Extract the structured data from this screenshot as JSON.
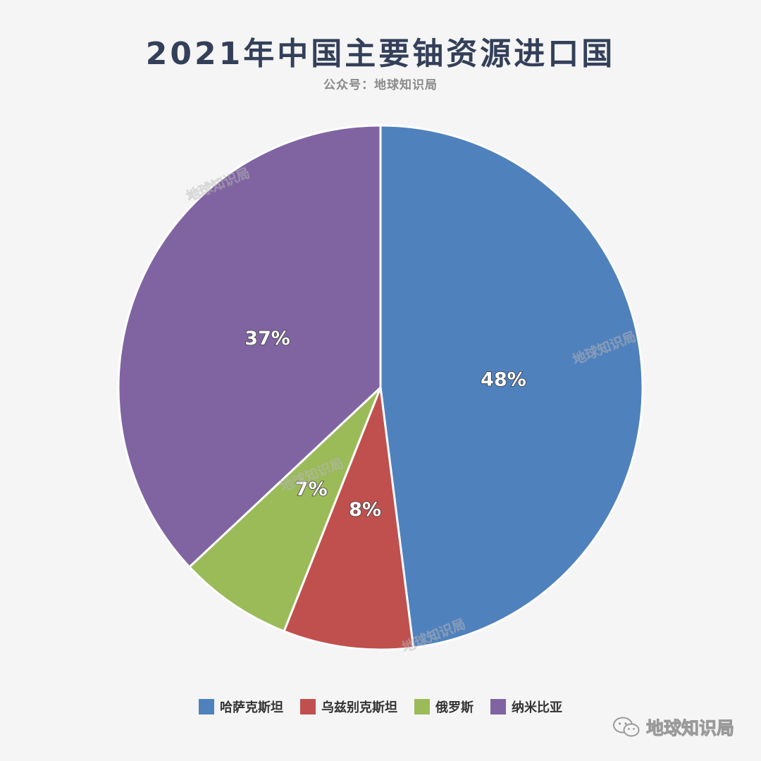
{
  "chart_data": {
    "type": "pie",
    "title": "2021年中国主要铀资源进口国",
    "subtitle": "公众号：地球知识局",
    "categories": [
      "哈萨克斯坦",
      "乌兹别克斯坦",
      "俄罗斯",
      "纳米比亚"
    ],
    "values": [
      48,
      8,
      7,
      37
    ],
    "labels": [
      "48%",
      "8%",
      "7%",
      "37%"
    ],
    "colors": [
      "#4f81bd",
      "#c0504d",
      "#9bbb59",
      "#8064a2"
    ],
    "start_angle_deg": 0,
    "direction": "clockwise",
    "legend_position": "bottom"
  },
  "watermark": {
    "text": "地球知识局",
    "icon": "wechat-icon"
  }
}
